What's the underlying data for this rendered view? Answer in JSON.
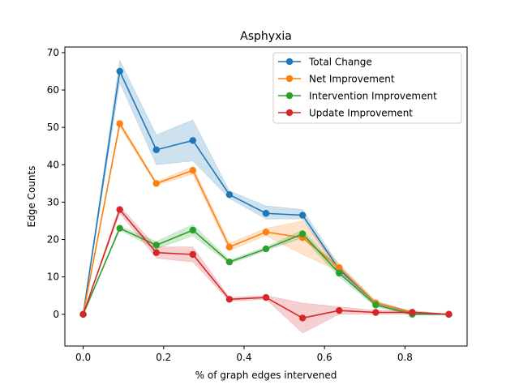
{
  "chart_data": {
    "type": "line",
    "title": "Asphyxia",
    "xlabel": "% of graph edges intervened",
    "ylabel": "Edge Counts",
    "xlim": [
      -0.0455,
      0.9545
    ],
    "ylim": [
      -8.5,
      71.5
    ],
    "grid": false,
    "legend_position": "top-right",
    "x": [
      0.0,
      0.0909,
      0.1818,
      0.2727,
      0.3636,
      0.4545,
      0.5455,
      0.6364,
      0.7273,
      0.8182,
      0.9091
    ],
    "xticks": [
      0.0,
      0.2,
      0.4,
      0.6,
      0.8
    ],
    "xtick_labels": [
      "0.0",
      "0.2",
      "0.4",
      "0.6",
      "0.8"
    ],
    "yticks": [
      0,
      10,
      20,
      30,
      40,
      50,
      60,
      70
    ],
    "ytick_labels": [
      "0",
      "10",
      "20",
      "30",
      "40",
      "50",
      "60",
      "70"
    ],
    "series": [
      {
        "name": "Total Change",
        "color": "#1f77b4",
        "values": [
          0,
          65,
          44,
          46.5,
          32,
          27,
          26.5,
          12,
          3,
          0.5,
          0
        ],
        "lower": [
          0,
          62,
          40,
          41,
          31,
          25.5,
          25.5,
          11,
          2.5,
          0.3,
          0
        ],
        "upper": [
          0,
          68,
          48,
          52,
          33,
          29,
          28,
          13,
          3.5,
          0.7,
          0
        ]
      },
      {
        "name": "Net Improvement",
        "color": "#ff7f0e",
        "values": [
          0,
          51,
          35,
          38.5,
          18,
          22,
          20.5,
          12.5,
          3,
          0.5,
          0
        ],
        "lower": [
          0,
          50,
          34.5,
          37.5,
          17,
          21,
          16,
          11.5,
          2.5,
          0.3,
          0
        ],
        "upper": [
          0,
          51.5,
          35.5,
          39.5,
          19,
          23,
          25,
          13.5,
          3.5,
          0.7,
          0
        ]
      },
      {
        "name": "Intervention Improvement",
        "color": "#2ca02c",
        "values": [
          0,
          23,
          18.5,
          22.5,
          14,
          17.5,
          21.5,
          11,
          2.5,
          0,
          0
        ],
        "lower": [
          0,
          22.5,
          17.5,
          21,
          13.5,
          17,
          20.5,
          10,
          2,
          -0.2,
          0
        ],
        "upper": [
          0,
          23.5,
          19.5,
          24,
          14.5,
          18,
          22.5,
          12,
          3,
          0.2,
          0
        ]
      },
      {
        "name": "Update Improvement",
        "color": "#d62728",
        "values": [
          0,
          28,
          16.5,
          16,
          4,
          4.5,
          -1,
          1,
          0.5,
          0.5,
          0
        ],
        "lower": [
          0,
          27,
          15,
          14,
          3.5,
          4,
          -5,
          0,
          0,
          0,
          0
        ],
        "upper": [
          0,
          29,
          18,
          18,
          4.5,
          5,
          3,
          2,
          1,
          1,
          0
        ]
      }
    ]
  }
}
